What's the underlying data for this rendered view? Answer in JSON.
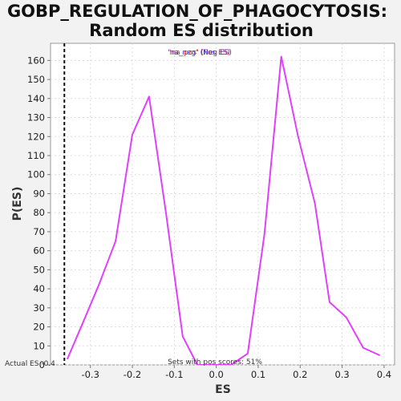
{
  "chart_data": {
    "type": "line",
    "title": "GOBP_REGULATION_OF_PHAGOCYTOSIS:",
    "subtitle": "Random ES distribution",
    "xlabel": "ES",
    "ylabel": "P(ES)",
    "xlim": [
      -0.395,
      0.425
    ],
    "ylim": [
      0,
      169
    ],
    "x_ticks": [
      -0.3,
      -0.2,
      -0.1,
      0.0,
      0.1,
      0.2,
      0.3,
      0.4
    ],
    "x_tick_labels": [
      "-0.3",
      "-0.2",
      "-0.1",
      "0.0",
      "0.1",
      "0.2",
      "0.3",
      "0.4"
    ],
    "y_ticks": [
      0,
      10,
      20,
      30,
      40,
      50,
      60,
      70,
      80,
      90,
      100,
      110,
      120,
      130,
      140,
      150,
      160
    ],
    "y_tick_labels": [
      "0",
      "10",
      "20",
      "30",
      "40",
      "50",
      "60",
      "70",
      "80",
      "90",
      "100",
      "110",
      "120",
      "130",
      "140",
      "150",
      "160"
    ],
    "grid": true,
    "series": [
      {
        "color": "#e040fb",
        "x": [
          -0.355,
          -0.32,
          -0.28,
          -0.24,
          -0.2,
          -0.16,
          -0.12,
          -0.08,
          -0.045,
          -0.01,
          0.035,
          0.075,
          0.115,
          0.155,
          0.195,
          0.235,
          0.27,
          0.31,
          0.35,
          0.39
        ],
        "y": [
          3,
          21,
          42,
          65,
          121,
          141,
          80,
          15,
          0,
          0,
          0,
          6,
          69,
          162,
          120,
          85,
          33,
          25,
          9,
          5
        ]
      }
    ],
    "vline": {
      "x": -0.362,
      "color": "#111111",
      "style": "dashed"
    },
    "annotations": {
      "legend_neg": "'na_neg' (Neg ES)",
      "legend_pos": "'na_pos' (Pos ES)",
      "legend_neg_color": "#3333cc",
      "legend_pos_color": "#ee2222",
      "actual_es": "Actual ES -0.4",
      "pos_scores": "Sets with pos scores: 51%"
    }
  }
}
